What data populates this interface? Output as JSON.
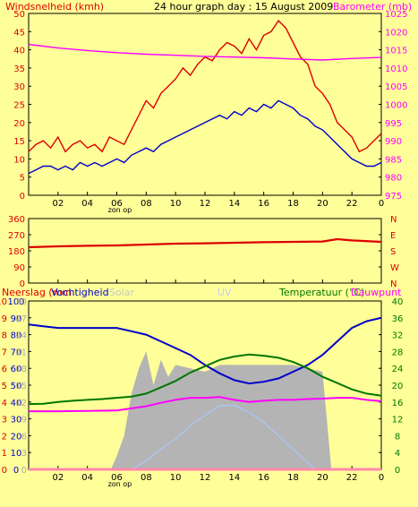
{
  "header": {
    "left_title": "Windsnelheid (kmh)",
    "center_title": "24 hour graph day : 15 August 2009",
    "right_title": "Barometer (mb)"
  },
  "bottom_header": {
    "rain": "Neerslag (mm",
    "humidity": "Vochtigheid",
    "solar": "Solar",
    "uv": "UV",
    "temperature": "Temperatuur (°C)",
    "dewpoint": "Dauwpunt"
  },
  "colors": {
    "background": "#ffff99",
    "red": "#dd0000",
    "blue": "#0000cc",
    "magenta": "#ff00ff",
    "green": "#007700",
    "gray": "#b4b4b4",
    "lightblue": "#a8c8ff",
    "pink": "#ff88aa"
  },
  "x_ticks": [
    "02",
    "04",
    "06",
    "08",
    "10",
    "12",
    "14",
    "16",
    "18",
    "20",
    "22",
    "0"
  ],
  "sunrise_label": "zon op",
  "chart_data": [
    {
      "type": "line",
      "name": "top",
      "xlim": [
        0,
        24
      ],
      "ylim_left": [
        0,
        50
      ],
      "ylim_right": [
        975,
        1025
      ],
      "left_ticks": [
        "0",
        "5",
        "10",
        "15",
        "20",
        "25",
        "30",
        "35",
        "40",
        "45",
        "50"
      ],
      "right_ticks": [
        "975",
        "980",
        "985",
        "990",
        "995",
        "1000",
        "1005",
        "1010",
        "1015",
        "1020",
        "1025"
      ],
      "series": [
        {
          "color": "red",
          "axis": "left",
          "x": [
            0,
            0.5,
            1,
            1.5,
            2,
            2.5,
            3,
            3.5,
            4,
            4.5,
            5,
            5.5,
            6,
            6.5,
            7,
            7.5,
            8,
            8.5,
            9,
            9.5,
            10,
            10.5,
            11,
            11.5,
            12,
            12.5,
            13,
            13.5,
            14,
            14.5,
            15,
            15.5,
            16,
            16.5,
            17,
            17.5,
            18,
            18.5,
            19,
            19.5,
            20,
            20.5,
            21,
            21.5,
            22,
            22.5,
            23,
            23.5,
            24
          ],
          "y": [
            12,
            14,
            15,
            13,
            16,
            12,
            14,
            15,
            13,
            14,
            12,
            16,
            15,
            14,
            18,
            22,
            26,
            24,
            28,
            30,
            32,
            35,
            33,
            36,
            38,
            37,
            40,
            42,
            41,
            39,
            43,
            40,
            44,
            45,
            48,
            46,
            42,
            38,
            36,
            30,
            28,
            25,
            20,
            18,
            16,
            12,
            13,
            15,
            17
          ]
        },
        {
          "color": "blue",
          "axis": "left",
          "x": [
            0,
            0.5,
            1,
            1.5,
            2,
            2.5,
            3,
            3.5,
            4,
            4.5,
            5,
            5.5,
            6,
            6.5,
            7,
            7.5,
            8,
            8.5,
            9,
            9.5,
            10,
            10.5,
            11,
            11.5,
            12,
            12.5,
            13,
            13.5,
            14,
            14.5,
            15,
            15.5,
            16,
            16.5,
            17,
            17.5,
            18,
            18.5,
            19,
            19.5,
            20,
            20.5,
            21,
            21.5,
            22,
            22.5,
            23,
            23.5,
            24
          ],
          "y": [
            6,
            7,
            8,
            8,
            7,
            8,
            7,
            9,
            8,
            9,
            8,
            9,
            10,
            9,
            11,
            12,
            13,
            12,
            14,
            15,
            16,
            17,
            18,
            19,
            20,
            21,
            22,
            21,
            23,
            22,
            24,
            23,
            25,
            24,
            26,
            25,
            24,
            22,
            21,
            19,
            18,
            16,
            14,
            12,
            10,
            9,
            8,
            8,
            9
          ]
        },
        {
          "color": "magenta",
          "axis": "right",
          "x": [
            0,
            2,
            4,
            6,
            8,
            10,
            12,
            14,
            16,
            18,
            20,
            22,
            24
          ],
          "y": [
            1016.5,
            1015.5,
            1014.8,
            1014.2,
            1013.8,
            1013.5,
            1013.2,
            1013,
            1012.8,
            1012.5,
            1012.2,
            1012.6,
            1012.9
          ]
        }
      ]
    },
    {
      "type": "line",
      "name": "wind-direction",
      "xlim": [
        0,
        24
      ],
      "ylim": [
        0,
        360
      ],
      "left_ticks": [
        "0",
        "90",
        "180",
        "270",
        "360"
      ],
      "right_ticks": [
        "N",
        "W",
        "S",
        "E",
        "N"
      ],
      "series": [
        {
          "color": "red",
          "x": [
            0,
            2,
            4,
            6,
            8,
            10,
            12,
            14,
            16,
            18,
            20,
            21,
            22,
            24
          ],
          "y": [
            200,
            205,
            208,
            210,
            215,
            220,
            222,
            225,
            228,
            230,
            232,
            245,
            238,
            230
          ]
        }
      ]
    },
    {
      "type": "line",
      "name": "bottom",
      "xlim": [
        0,
        24
      ],
      "ylim_rain": [
        0,
        10
      ],
      "ylim_humidity": [
        0,
        100
      ],
      "ylim_temp": [
        0,
        40
      ],
      "rain_ticks": [
        "0",
        "1",
        "2",
        "3",
        "4",
        "5",
        "6",
        "7",
        "8",
        "9",
        "10"
      ],
      "humidity_ticks": [
        "0",
        "10",
        "20",
        "30",
        "40",
        "50",
        "60",
        "70",
        "80",
        "90",
        "100"
      ],
      "solar_ticks": [
        "0",
        "3",
        "6",
        "9",
        "12",
        "15",
        "18",
        "21",
        "24",
        "27",
        "30"
      ],
      "temp_ticks": [
        "0",
        "4",
        "8",
        "12",
        "16",
        "20",
        "24",
        "28",
        "32",
        "36",
        "40"
      ],
      "series": [
        {
          "name": "Solar",
          "color": "gray",
          "axis": "humidity",
          "x": [
            0,
            5.6,
            6,
            6.5,
            7,
            7.5,
            8,
            8.5,
            9,
            9.5,
            10,
            11,
            12,
            13,
            14,
            15,
            16,
            17,
            18,
            19,
            20,
            20.6,
            21,
            24
          ],
          "y": [
            0,
            0,
            8,
            20,
            45,
            60,
            70,
            50,
            65,
            55,
            62,
            60,
            58,
            62,
            62,
            62,
            62,
            62,
            62,
            60,
            58,
            0,
            0,
            0
          ]
        },
        {
          "name": "UV",
          "color": "lightblue",
          "axis": "humidity",
          "x": [
            0,
            7,
            8,
            9,
            10,
            11,
            12,
            13,
            14,
            15,
            16,
            17,
            18,
            19,
            19.5,
            24
          ],
          "y": [
            0,
            0,
            5,
            12,
            18,
            26,
            32,
            38,
            38,
            34,
            28,
            20,
            12,
            4,
            0,
            0
          ]
        },
        {
          "name": "Vochtigheid",
          "color": "blue",
          "axis": "humidity",
          "x": [
            0,
            1,
            2,
            3,
            4,
            5,
            6,
            7,
            8,
            9,
            10,
            11,
            12,
            13,
            14,
            15,
            16,
            17,
            18,
            19,
            20,
            21,
            22,
            23,
            24
          ],
          "y": [
            86,
            85,
            84,
            84,
            84,
            84,
            84,
            82,
            80,
            76,
            72,
            68,
            62,
            57,
            53,
            51,
            52,
            54,
            58,
            62,
            68,
            76,
            84,
            88,
            90
          ]
        },
        {
          "name": "Temperatuur",
          "color": "green",
          "axis": "temp",
          "x": [
            0,
            1,
            2,
            3,
            4,
            5,
            6,
            7,
            8,
            9,
            10,
            11,
            12,
            13,
            14,
            15,
            16,
            17,
            18,
            19,
            20,
            21,
            22,
            23,
            24
          ],
          "y": [
            15.5,
            15.6,
            16,
            16.3,
            16.5,
            16.7,
            17,
            17.3,
            18,
            19.5,
            21,
            23,
            24.5,
            26,
            26.8,
            27.3,
            27,
            26.5,
            25.5,
            24,
            22,
            20.5,
            19,
            18,
            17.5
          ]
        },
        {
          "name": "Dauwpunt",
          "color": "magenta",
          "axis": "temp",
          "x": [
            0,
            2,
            4,
            6,
            7,
            8,
            9,
            10,
            11,
            12,
            13,
            14,
            15,
            16,
            17,
            18,
            19,
            20,
            21,
            22,
            23,
            24
          ],
          "y": [
            13.8,
            13.8,
            13.9,
            14,
            14.5,
            15,
            15.8,
            16.5,
            17,
            17,
            17.2,
            16.5,
            16,
            16.3,
            16.5,
            16.5,
            16.7,
            16.8,
            17,
            17,
            16.5,
            16.2
          ]
        },
        {
          "name": "Neerslag",
          "color": "pink",
          "axis": "rain",
          "x": [
            0,
            24
          ],
          "y": [
            0,
            0
          ]
        }
      ]
    }
  ]
}
